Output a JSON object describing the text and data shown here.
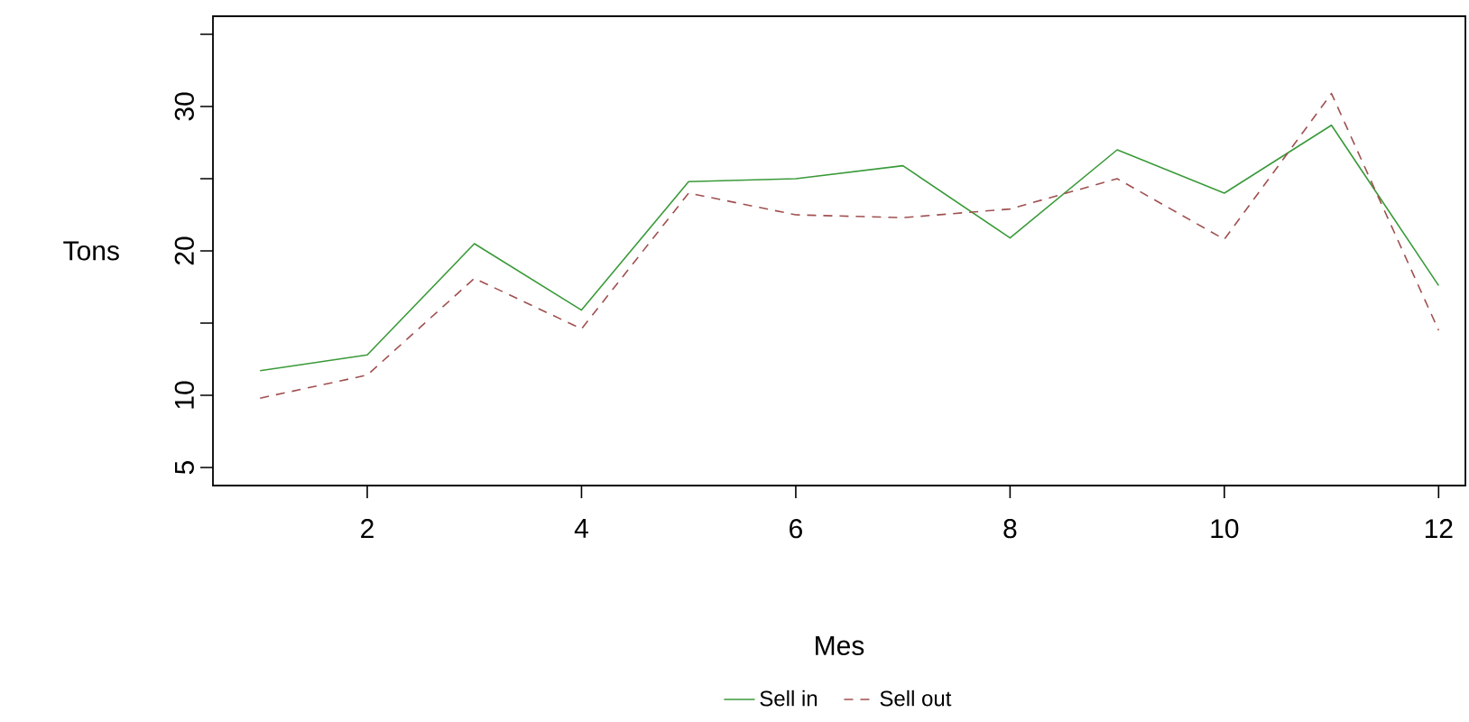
{
  "chart_data": {
    "type": "line",
    "xlabel": "Mes",
    "ylabel": "Tons",
    "x": [
      1,
      2,
      3,
      4,
      5,
      6,
      7,
      8,
      9,
      10,
      11,
      12
    ],
    "series": [
      {
        "name": "Sell in",
        "color": "#3a9a3a",
        "line_style": "solid",
        "values": [
          11.7,
          12.8,
          20.5,
          15.9,
          24.8,
          25.0,
          25.9,
          20.9,
          27.0,
          24.0,
          28.7,
          17.6
        ]
      },
      {
        "name": "Sell out",
        "color": "#a05050",
        "line_style": "dashed",
        "values": [
          9.8,
          11.4,
          18.1,
          14.6,
          24.0,
          22.5,
          22.3,
          22.9,
          25.0,
          20.8,
          30.9,
          14.5
        ]
      }
    ],
    "xlim": [
      0.56,
      12.25
    ],
    "ylim": [
      3.75,
      36.25
    ],
    "xticks": [
      2,
      4,
      6,
      8,
      10,
      12
    ],
    "yticks": [
      5,
      10,
      {
        "value": 15,
        "label": null
      },
      20,
      {
        "value": 25,
        "label": null
      },
      30,
      {
        "value": 35,
        "label": null
      }
    ],
    "grid": false,
    "legend": "bottom"
  }
}
